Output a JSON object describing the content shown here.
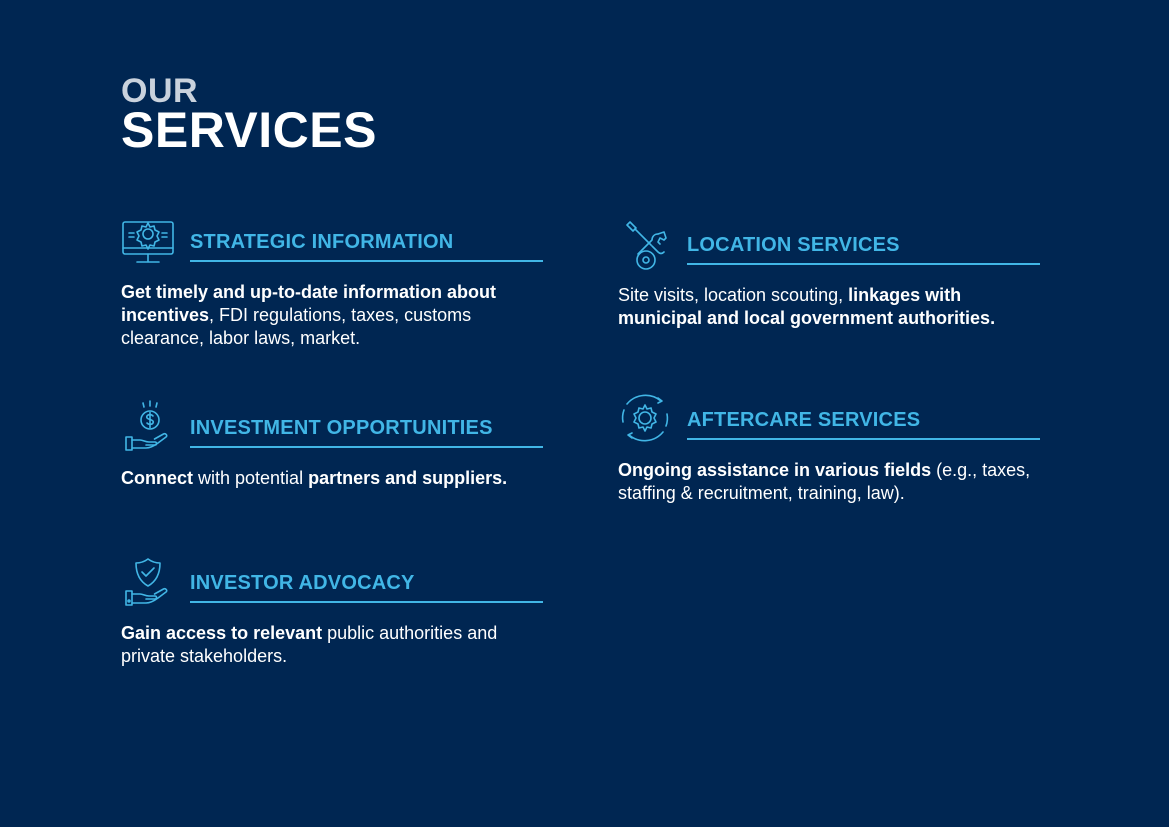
{
  "title": {
    "line1": "OUR",
    "line2": "SERVICES"
  },
  "colors": {
    "background": "#002652",
    "accent": "#41b6e6",
    "title_muted": "#c9d2dd",
    "text": "#ffffff"
  },
  "services": [
    {
      "icon": "gear-monitor-icon",
      "heading": "STRATEGIC INFORMATION",
      "desc": {
        "b1": "Get timely and up-to-date information about incentives",
        "t1": ", FDI regulations, taxes, customs clearance, labor laws, market."
      }
    },
    {
      "icon": "location-tools-icon",
      "heading": "LOCATION SERVICES",
      "desc": {
        "t1": "Site visits, location scouting, ",
        "b1": "linkages with municipal and local government authorities."
      }
    },
    {
      "icon": "money-hand-icon",
      "heading": "INVESTMENT OPPORTUNITIES",
      "desc": {
        "b1": "Connect",
        "t1": " with potential ",
        "b2": "partners and suppliers."
      }
    },
    {
      "icon": "aftercare-gear-icon",
      "heading": "AFTERCARE SERVICES",
      "desc": {
        "b1": "Ongoing assistance in various fields",
        "t1": " (e.g., taxes, staffing & recruitment, training, law)."
      }
    },
    {
      "icon": "shield-hand-icon",
      "heading": "INVESTOR ADVOCACY",
      "desc": {
        "b1": "Gain access to relevant",
        "t1": " public authorities and private stakeholders."
      }
    }
  ]
}
